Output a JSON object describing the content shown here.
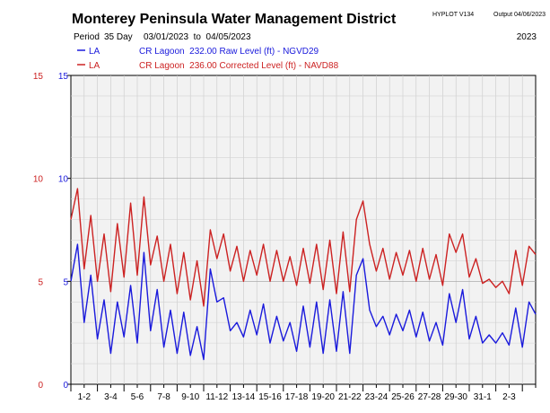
{
  "header": {
    "title": "Monterey Peninsula Water Management District",
    "program": "HYPLOT V134",
    "output_label": "Output 04/06/2023",
    "period_label": "Period",
    "period_value": "35 Day",
    "date_range": "03/01/2023  to  04/05/2023",
    "year": "2023"
  },
  "legend": [
    {
      "code": "LA",
      "label": "CR Lagoon  232.00 Raw Level (ft) - NGVD29",
      "color": "#1a1adc"
    },
    {
      "code": "LA",
      "label": "CR Lagoon  236.00 Corrected Level (ft) - NAVD88",
      "color": "#cc2222"
    }
  ],
  "chart_data": {
    "type": "line",
    "ylim": [
      0,
      15
    ],
    "xlim": [
      0,
      35
    ],
    "grid": true,
    "left_axis_ticks": [
      "0",
      "5",
      "10",
      "15"
    ],
    "left_axis_color": "#cc2222",
    "right_axis_ticks": [
      "0",
      "5",
      "10",
      "15"
    ],
    "right_axis_color": "#1a1adc",
    "day_labels": [
      "1-2",
      "3-4",
      "5-6",
      "7-8",
      "9-10",
      "11-12",
      "13-14",
      "15-16",
      "17-18",
      "19-20",
      "21-22",
      "23-24",
      "25-26",
      "27-28",
      "29-30",
      "31-1",
      "2-3"
    ],
    "series": [
      {
        "name": "Raw Level",
        "color": "#1a1adc",
        "x": [
          0,
          0.5,
          1,
          1.5,
          2,
          2.5,
          3,
          3.5,
          4,
          4.5,
          5,
          5.5,
          6,
          6.5,
          7,
          7.5,
          8,
          8.5,
          9,
          9.5,
          10,
          10.5,
          11,
          11.5,
          12,
          12.5,
          13,
          13.5,
          14,
          14.5,
          15,
          15.5,
          16,
          16.5,
          17,
          17.5,
          18,
          18.5,
          19,
          19.5,
          20,
          20.5,
          21,
          21.5,
          22,
          22.5,
          23,
          23.5,
          24,
          24.5,
          25,
          25.5,
          26,
          26.5,
          27,
          27.5,
          28,
          28.5,
          29,
          29.5,
          30,
          30.5,
          31,
          31.5,
          32,
          32.5,
          33,
          33.5,
          34,
          34.5,
          35
        ],
        "y": [
          5.0,
          6.8,
          3.0,
          5.3,
          2.2,
          4.1,
          1.5,
          4.0,
          2.3,
          4.8,
          2.0,
          6.4,
          2.6,
          4.6,
          1.8,
          3.6,
          1.5,
          3.5,
          1.4,
          2.8,
          1.2,
          5.6,
          4.0,
          4.2,
          2.6,
          3.0,
          2.3,
          3.6,
          2.4,
          3.9,
          2.0,
          3.3,
          2.1,
          3.0,
          1.6,
          3.8,
          1.8,
          4.0,
          1.5,
          4.1,
          1.6,
          4.5,
          1.5,
          5.3,
          6.1,
          3.6,
          2.8,
          3.3,
          2.4,
          3.4,
          2.6,
          3.6,
          2.3,
          3.5,
          2.1,
          3.0,
          1.9,
          4.4,
          3.0,
          4.6,
          2.2,
          3.3,
          2.0,
          2.4,
          2.0,
          2.5,
          1.9,
          3.7,
          1.8,
          4.0,
          3.4
        ]
      },
      {
        "name": "Corrected Level",
        "color": "#cc2222",
        "x": [
          0,
          0.5,
          1,
          1.5,
          2,
          2.5,
          3,
          3.5,
          4,
          4.5,
          5,
          5.5,
          6,
          6.5,
          7,
          7.5,
          8,
          8.5,
          9,
          9.5,
          10,
          10.5,
          11,
          11.5,
          12,
          12.5,
          13,
          13.5,
          14,
          14.5,
          15,
          15.5,
          16,
          16.5,
          17,
          17.5,
          18,
          18.5,
          19,
          19.5,
          20,
          20.5,
          21,
          21.5,
          22,
          22.5,
          23,
          23.5,
          24,
          24.5,
          25,
          25.5,
          26,
          26.5,
          27,
          27.5,
          28,
          28.5,
          29,
          29.5,
          30,
          30.5,
          31,
          31.5,
          32,
          32.5,
          33,
          33.5,
          34,
          34.5,
          35
        ],
        "y": [
          8.0,
          9.5,
          5.6,
          8.2,
          5.0,
          7.3,
          4.5,
          7.8,
          5.2,
          8.8,
          5.3,
          9.1,
          5.8,
          7.2,
          5.0,
          6.8,
          4.4,
          6.4,
          4.1,
          6.0,
          3.8,
          7.5,
          6.1,
          7.3,
          5.5,
          6.7,
          5.0,
          6.5,
          5.3,
          6.8,
          5.0,
          6.5,
          5.0,
          6.2,
          4.8,
          6.6,
          4.9,
          6.8,
          4.6,
          7.0,
          4.4,
          7.4,
          4.5,
          8.0,
          8.9,
          6.8,
          5.5,
          6.6,
          5.1,
          6.4,
          5.3,
          6.5,
          5.0,
          6.6,
          5.1,
          6.3,
          4.8,
          7.3,
          6.4,
          7.3,
          5.2,
          6.1,
          4.9,
          5.1,
          4.7,
          5.0,
          4.4,
          6.5,
          4.8,
          6.7,
          6.3
        ]
      }
    ]
  }
}
